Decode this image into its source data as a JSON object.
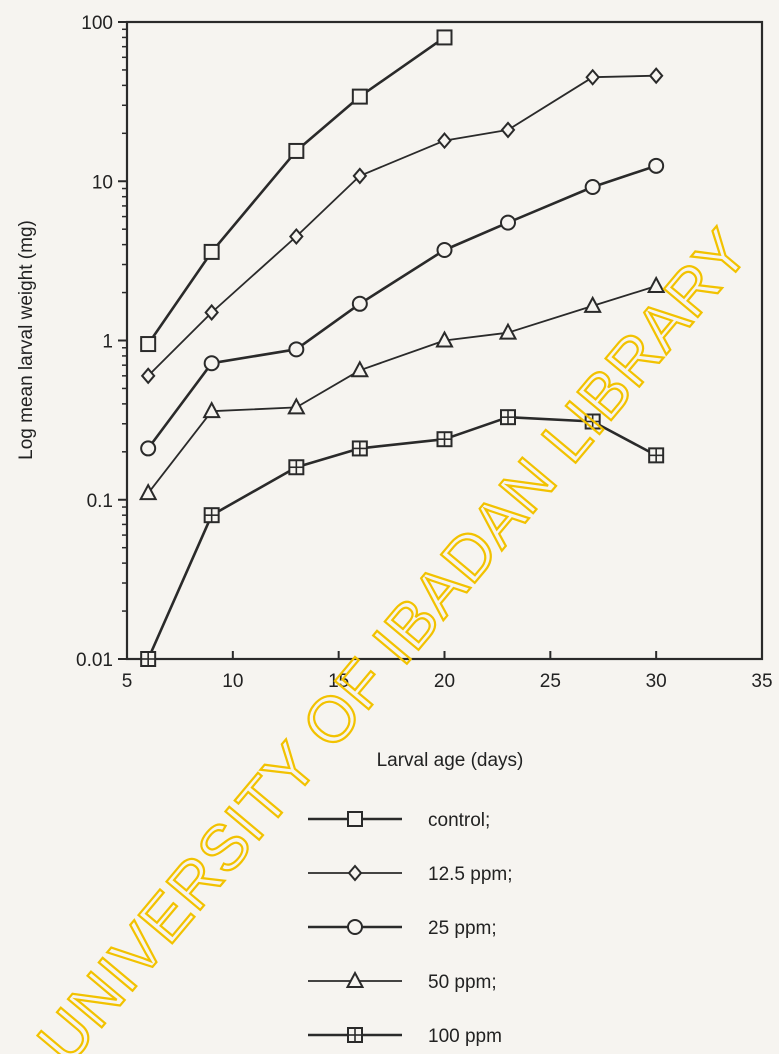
{
  "chart_data": {
    "type": "line",
    "ylabel": "Log mean larval weight (mg)",
    "xlabel": "Larval age (days)",
    "xlim": [
      5,
      35
    ],
    "ylim": [
      0.01,
      100
    ],
    "yscale": "log",
    "x_ticks": [
      "5",
      "10",
      "15",
      "20",
      "25",
      "30",
      "35"
    ],
    "y_ticks": [
      "0.01",
      "0.1",
      "1",
      "10",
      "100"
    ],
    "grid": false,
    "legend_position": "bottom",
    "series": [
      {
        "name": "control;",
        "marker": "square",
        "x": [
          6,
          9,
          13,
          16,
          20
        ],
        "y": [
          0.95,
          3.6,
          15.5,
          34,
          80
        ]
      },
      {
        "name": "12.5 ppm;",
        "marker": "diamond",
        "x": [
          6,
          9,
          13,
          16,
          20,
          23,
          27,
          30
        ],
        "y": [
          0.6,
          1.5,
          4.5,
          10.8,
          18,
          21,
          45,
          46
        ]
      },
      {
        "name": "25 ppm;",
        "marker": "circle",
        "x": [
          6,
          9,
          13,
          16,
          20,
          23,
          27,
          30
        ],
        "y": [
          0.21,
          0.72,
          0.88,
          1.7,
          3.7,
          5.5,
          9.2,
          12.5
        ]
      },
      {
        "name": "50 ppm;",
        "marker": "triangle",
        "x": [
          6,
          9,
          13,
          16,
          20,
          23,
          27,
          30
        ],
        "y": [
          0.11,
          0.36,
          0.38,
          0.65,
          1.0,
          1.12,
          1.65,
          2.2
        ]
      },
      {
        "name": "100 ppm",
        "marker": "square-cross",
        "x": [
          6,
          9,
          13,
          16,
          20,
          23,
          27,
          30
        ],
        "y": [
          0.01,
          0.08,
          0.16,
          0.21,
          0.24,
          0.33,
          0.31,
          0.19
        ]
      }
    ]
  },
  "watermark": {
    "text": "UNIVERSITY OF IBADAN LIBRARY",
    "color": "#f2c200"
  }
}
